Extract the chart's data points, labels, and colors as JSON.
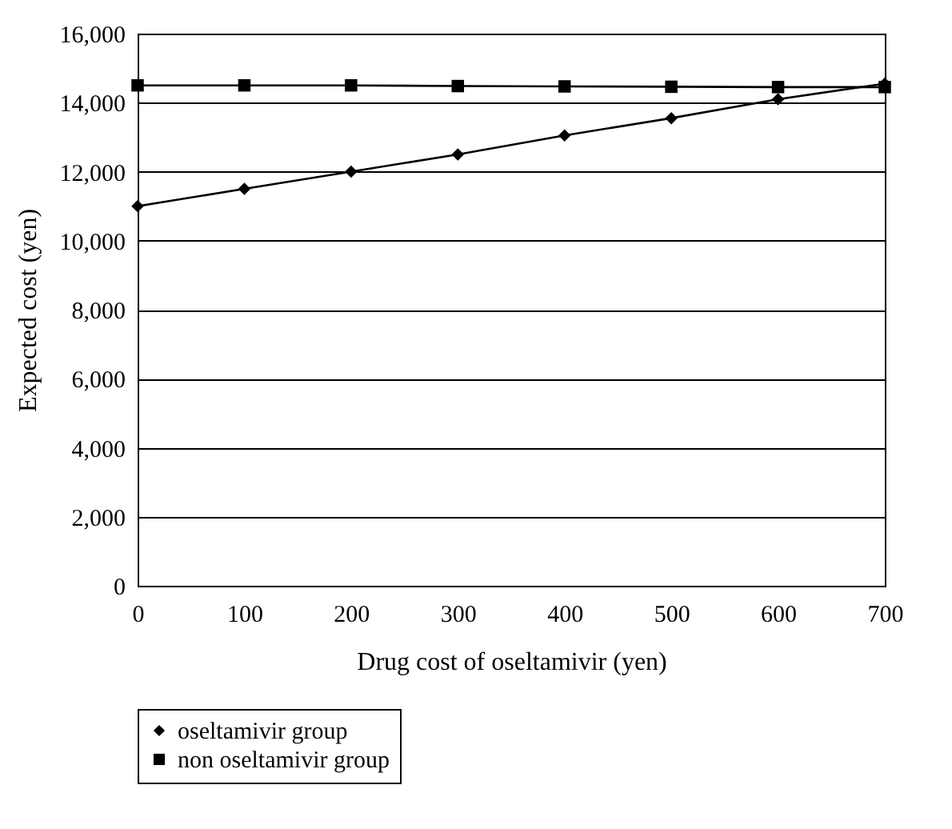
{
  "chart_data": {
    "type": "line",
    "xlabel": "Drug cost of oseltamivir (yen)",
    "ylabel": "Expected cost (yen)",
    "x": [
      0,
      100,
      200,
      300,
      400,
      500,
      600,
      700
    ],
    "series": [
      {
        "name": "oseltamivir group",
        "color": "#000000",
        "marker": "diamond",
        "values": [
          11000,
          11500,
          12000,
          12500,
          13050,
          13550,
          14100,
          14550
        ]
      },
      {
        "name": "non oseltamivir group",
        "color": "#000000",
        "marker": "square",
        "values": [
          14500,
          14500,
          14500,
          14480,
          14470,
          14460,
          14450,
          14450
        ]
      }
    ],
    "xlim": [
      0,
      700
    ],
    "xticks": [
      0,
      100,
      200,
      300,
      400,
      500,
      600,
      700
    ],
    "ylim": [
      0,
      16000
    ],
    "yticks": [
      0,
      {
        "value": 2000,
        "label": "2,000"
      },
      {
        "value": 4000,
        "label": "4,000"
      },
      {
        "value": 6000,
        "label": "6,000"
      },
      {
        "value": 8000,
        "label": "8,000"
      },
      {
        "value": 10000,
        "label": "10,000"
      },
      {
        "value": 12000,
        "label": "12,000"
      },
      {
        "value": 14000,
        "label": "14,000"
      },
      {
        "value": 16000,
        "label": "16,000"
      }
    ],
    "grid": "y",
    "legend": "bottom left",
    "line_style": "solid"
  }
}
